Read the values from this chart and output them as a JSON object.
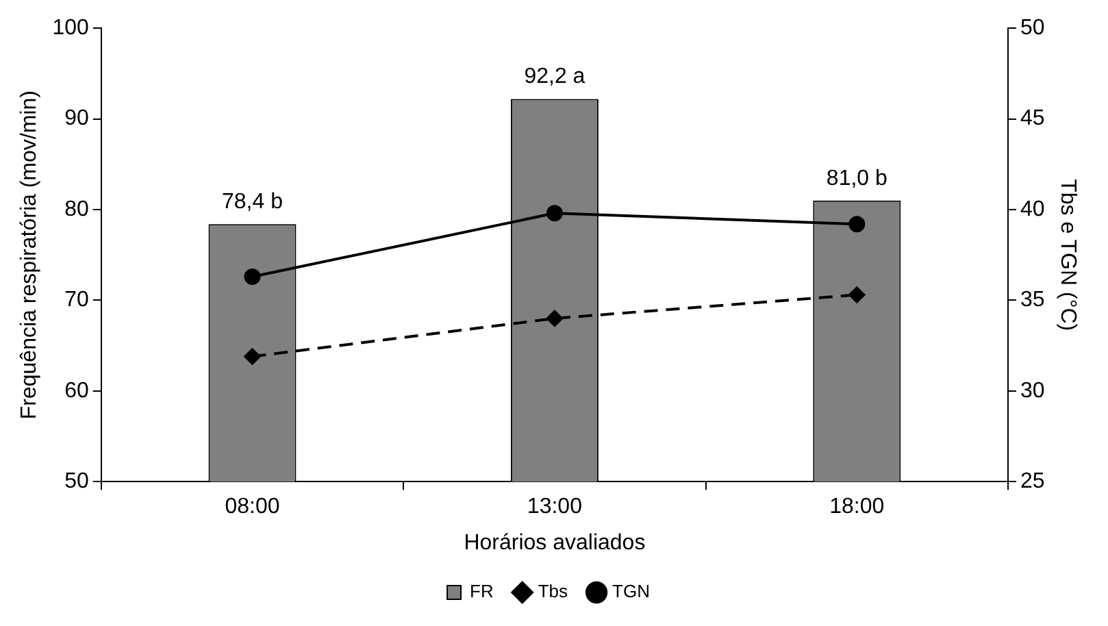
{
  "chart_data": {
    "type": "bar",
    "xlabel": "Horários avaliados",
    "ylabel": "Frequência respiratória (mov/min)",
    "y2label": "Tbs e TGN (°C)",
    "categories": [
      "08:00",
      "13:00",
      "18:00"
    ],
    "series": [
      {
        "name": "FR",
        "color": "#808080",
        "values": [
          78.4,
          92.2,
          81.0
        ],
        "value_labels": [
          "78,4 b",
          "92,2 a",
          "81,0 b"
        ]
      },
      {
        "name": "Tbs",
        "type": "line",
        "axis": "y2",
        "color": "#000000",
        "values": [
          31.9,
          34.0,
          35.3
        ],
        "marker": "diamond",
        "line_style": "dashed"
      },
      {
        "name": "TGN",
        "type": "line",
        "axis": "y2",
        "color": "#000000",
        "values": [
          36.3,
          39.8,
          39.2
        ],
        "marker": "circle",
        "line_style": "solid"
      }
    ],
    "ylim": [
      50,
      100
    ],
    "yticks": [
      50,
      60,
      70,
      80,
      90,
      100
    ],
    "y2lim": [
      25,
      50
    ],
    "y2ticks": [
      25,
      30,
      35,
      40,
      45,
      50
    ],
    "grid": false,
    "legend": "bottom"
  }
}
